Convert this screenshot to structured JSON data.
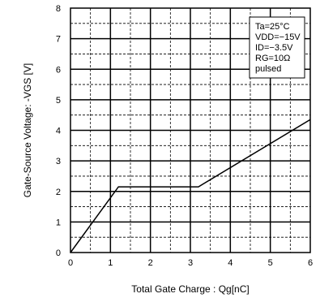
{
  "chart_data": {
    "type": "line",
    "xlabel": "Total Gate Charge : Qg[nC]",
    "ylabel": "Gate-Source Voltage: -VGS [V]",
    "xlim": [
      0,
      6
    ],
    "ylim": [
      0,
      8
    ],
    "x_ticks": [
      "0",
      "1",
      "2",
      "3",
      "4",
      "5",
      "6"
    ],
    "y_ticks": [
      "0",
      "1",
      "2",
      "3",
      "4",
      "5",
      "6",
      "7",
      "8"
    ],
    "grid": true,
    "legend_position": "top-right",
    "conditions": [
      "Ta=25°C",
      "VDD=−15V",
      "ID=−3.5V",
      "RG=10Ω",
      "pulsed"
    ],
    "series": [
      {
        "x": [
          0,
          1.2,
          3.2,
          6
        ],
        "y": [
          0,
          2.15,
          2.15,
          4.35
        ]
      }
    ]
  }
}
